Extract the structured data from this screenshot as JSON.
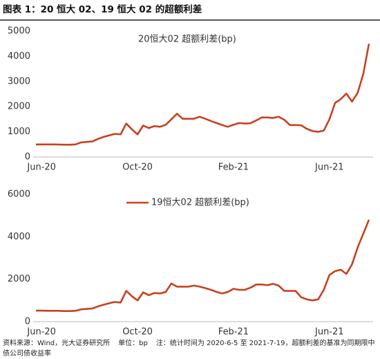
{
  "header": {
    "title": "图表 1：20 恒大 02、19 恒大 02 的超额利差"
  },
  "chart_data": [
    {
      "type": "line",
      "categories": [
        null,
        "Jun-20",
        null,
        null,
        null,
        null,
        null,
        null,
        null,
        null,
        null,
        null,
        null,
        null,
        null,
        null,
        null,
        null,
        "Oct-20",
        null,
        null,
        null,
        null,
        null,
        null,
        null,
        null,
        null,
        null,
        null,
        null,
        null,
        null,
        null,
        null,
        "Feb-21",
        null,
        null,
        null,
        null,
        null,
        null,
        null,
        null,
        null,
        null,
        null,
        null,
        null,
        null,
        null,
        null,
        "Jun-21",
        null,
        null,
        null,
        null,
        null,
        null,
        null
      ],
      "series": [
        {
          "name": "20恒大02 超额利差(bp)",
          "color": "#c8401e",
          "values": [
            500,
            500,
            500,
            500,
            495,
            490,
            490,
            500,
            580,
            600,
            620,
            720,
            800,
            860,
            920,
            900,
            1330,
            1100,
            900,
            1250,
            1150,
            1230,
            1200,
            1280,
            1500,
            1720,
            1520,
            1520,
            1520,
            1600,
            1520,
            1430,
            1350,
            1270,
            1200,
            1280,
            1350,
            1330,
            1340,
            1450,
            1570,
            1570,
            1550,
            1600,
            1480,
            1270,
            1270,
            1260,
            1120,
            1030,
            1000,
            1050,
            1500,
            2150,
            2300,
            2520,
            2200,
            2550,
            3300,
            4500
          ]
        }
      ],
      "ylim": [
        0,
        5000
      ],
      "yticks": [
        0,
        1000,
        2000,
        3000,
        4000,
        5000
      ],
      "legend_marker": false
    },
    {
      "type": "line",
      "categories": [
        null,
        "Jun-20",
        null,
        null,
        null,
        null,
        null,
        null,
        null,
        null,
        null,
        null,
        null,
        null,
        null,
        null,
        null,
        null,
        "Oct-20",
        null,
        null,
        null,
        null,
        null,
        null,
        null,
        null,
        null,
        null,
        null,
        null,
        null,
        null,
        null,
        null,
        "Feb-21",
        null,
        null,
        null,
        null,
        null,
        null,
        null,
        null,
        null,
        null,
        null,
        null,
        null,
        null,
        null,
        null,
        "Jun-21",
        null,
        null,
        null,
        null,
        null,
        null,
        null
      ],
      "series": [
        {
          "name": "19恒大02 超额利差(bp)",
          "color": "#c8401e",
          "values": [
            520,
            520,
            510,
            510,
            510,
            500,
            500,
            510,
            580,
            600,
            620,
            720,
            800,
            870,
            930,
            900,
            1450,
            1200,
            1000,
            1380,
            1250,
            1350,
            1330,
            1400,
            1800,
            1650,
            1650,
            1650,
            1700,
            1650,
            1580,
            1500,
            1400,
            1330,
            1400,
            1550,
            1500,
            1500,
            1600,
            1750,
            1750,
            1720,
            1780,
            1700,
            1450,
            1450,
            1450,
            1150,
            1050,
            1000,
            1050,
            1500,
            2200,
            2380,
            2450,
            2250,
            2700,
            3500,
            4150,
            4800
          ]
        }
      ],
      "ylim": [
        0,
        6000
      ],
      "yticks": [
        0,
        2000,
        4000,
        6000
      ],
      "legend_marker": true
    }
  ],
  "footer": {
    "source": "资料来源：Wind，光大证券研究所",
    "unit": "单位：bp",
    "note": "注：统计时间为 2020-6-5 至 2021-7-19，超额利差的基准为同期限中债公司债收益率"
  }
}
